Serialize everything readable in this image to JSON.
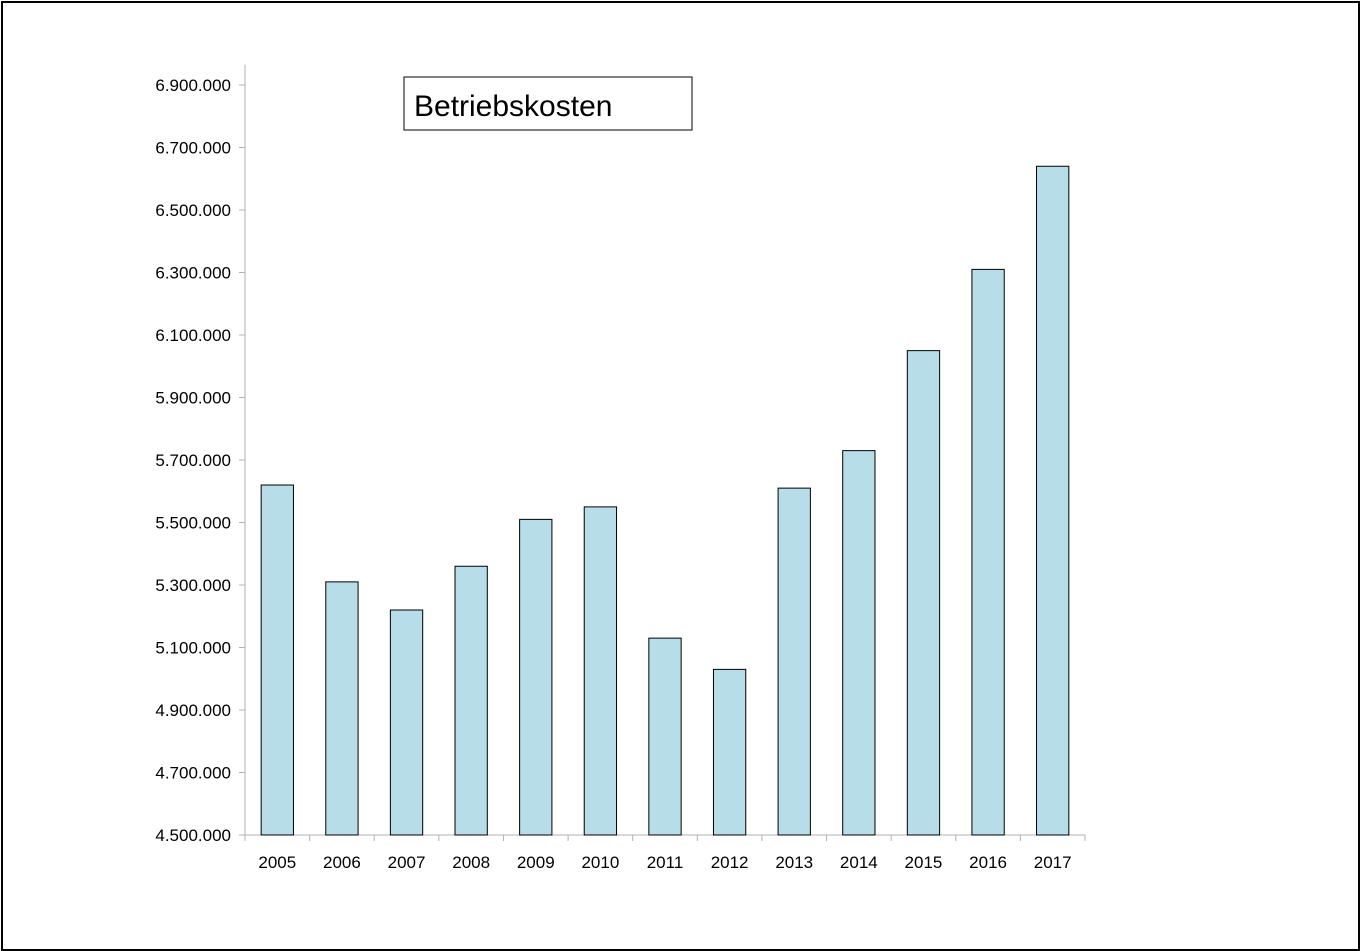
{
  "colors": {
    "bar_fill": "#b7dde8",
    "bar_stroke": "#000000",
    "axis": "#b0b0b0"
  },
  "chart_data": {
    "type": "bar",
    "title": "Betriebskosten",
    "xlabel": "",
    "ylabel": "",
    "grid": false,
    "ylim": [
      4500000,
      7000000
    ],
    "ytick_values": [
      4500000,
      4700000,
      4900000,
      5100000,
      5300000,
      5500000,
      5700000,
      5900000,
      6100000,
      6300000,
      6500000,
      6700000,
      6900000
    ],
    "ytick_labels": [
      "4.500.000",
      "4.700.000",
      "4.900.000",
      "5.100.000",
      "5.300.000",
      "5.500.000",
      "5.700.000",
      "5.900.000",
      "6.100.000",
      "6.300.000",
      "6.500.000",
      "6.700.000",
      "6.900.000"
    ],
    "categories": [
      "2005",
      "2006",
      "2007",
      "2008",
      "2009",
      "2010",
      "2011",
      "2012",
      "2013",
      "2014",
      "2015",
      "2016",
      "2017"
    ],
    "values": [
      5620000,
      5310000,
      5220000,
      5360000,
      5510000,
      5550000,
      5130000,
      5030000,
      5610000,
      5730000,
      6050000,
      6310000,
      6640000
    ]
  }
}
